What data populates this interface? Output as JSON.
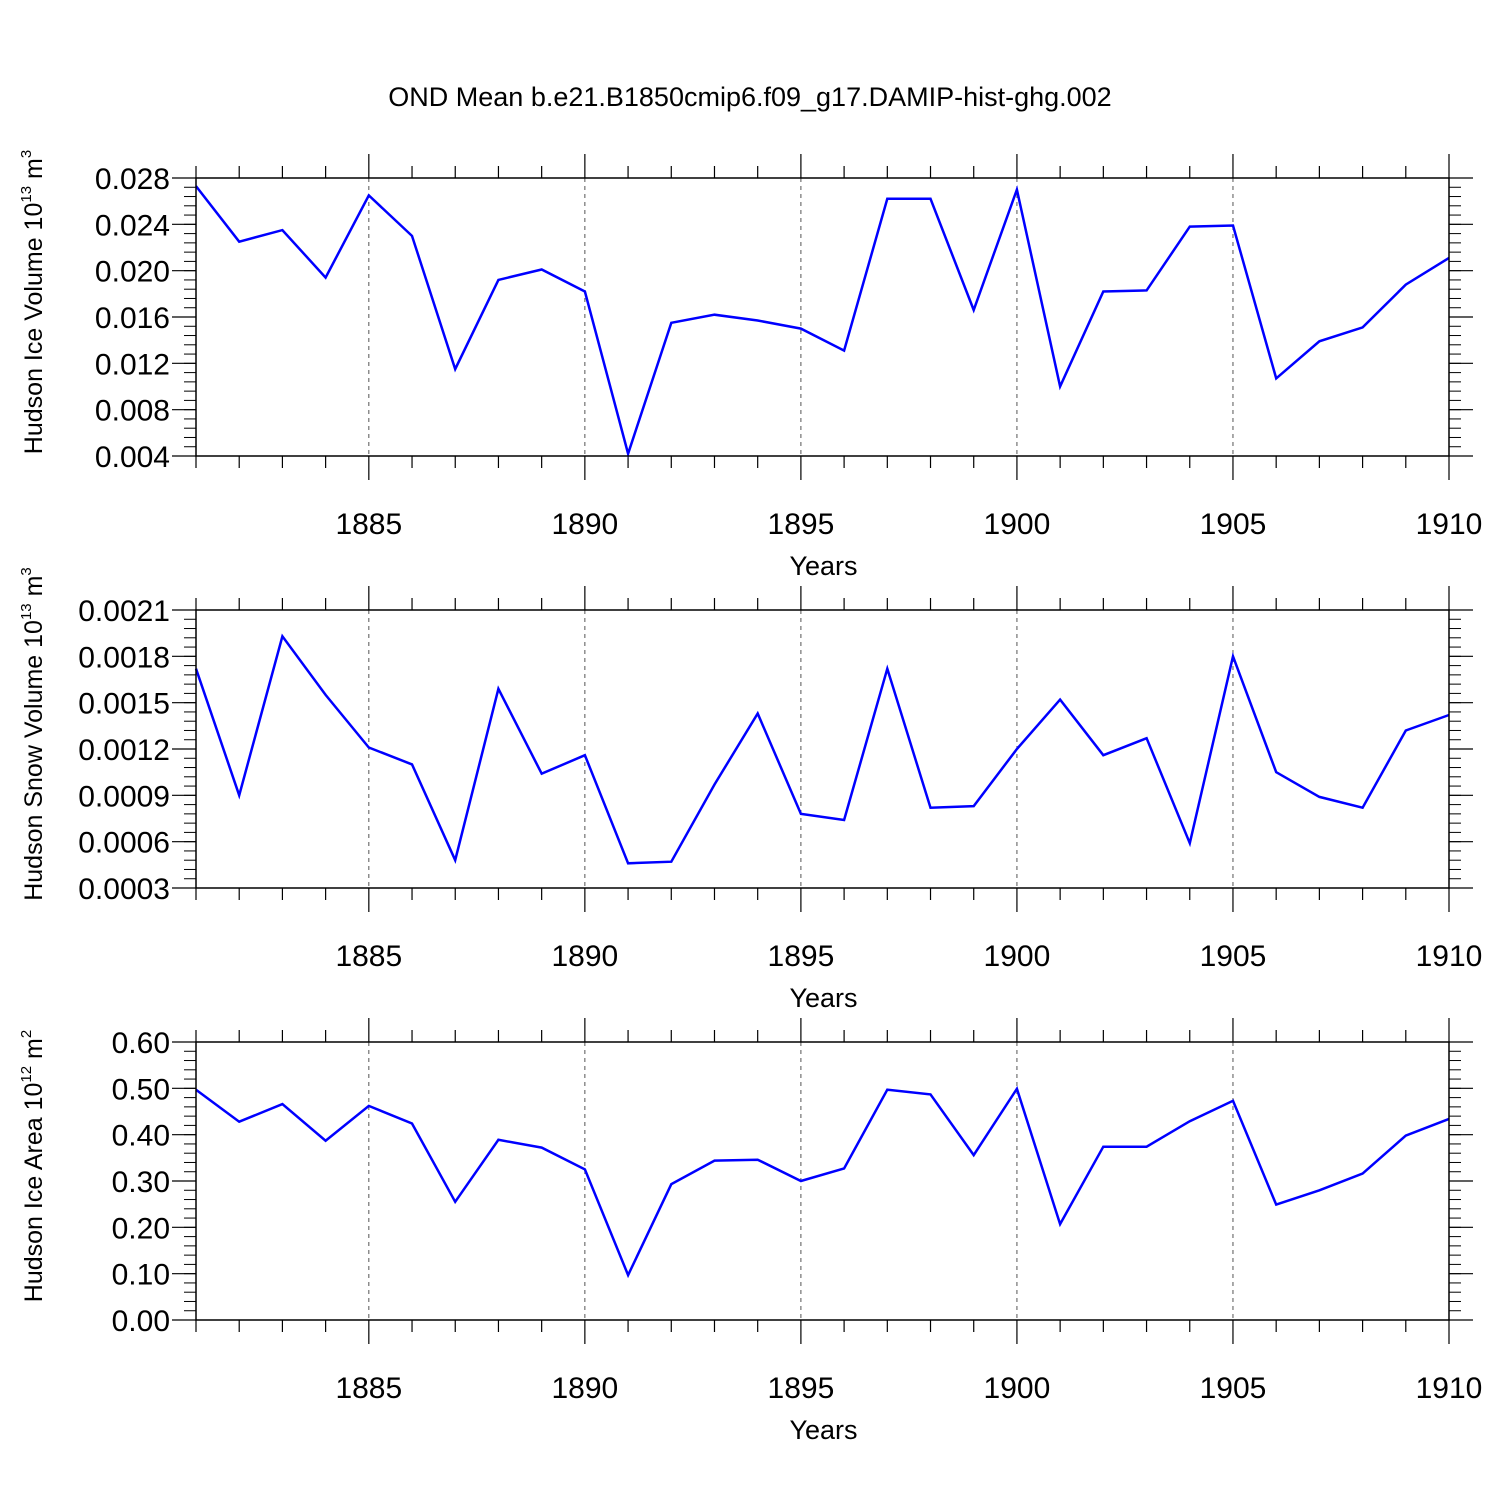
{
  "chart_data": [
    {
      "type": "line",
      "title": "OND Mean b.e21.B1850cmip6.f09_g17.DAMIP-hist-ghg.002",
      "ylabel": "Hudson Ice Volume",
      "ylabel_unit": "10",
      "ylabel_exp": "13",
      "ylabel_unit2": "m",
      "ylabel_exp2": "3",
      "xlabel": "Years",
      "xlim": [
        1881,
        1910
      ],
      "ylim": [
        0.004,
        0.028
      ],
      "x_ticks": [
        1885,
        1890,
        1895,
        1900,
        1905,
        1910
      ],
      "x_tick_labels": [
        "1885",
        "1890",
        "1895",
        "1900",
        "1905",
        "1910"
      ],
      "y_ticks": [
        0.004,
        0.008,
        0.012,
        0.016,
        0.02,
        0.024,
        0.028
      ],
      "y_tick_labels": [
        "0.004",
        "0.008",
        "0.012",
        "0.016",
        "0.020",
        "0.024",
        "0.028"
      ],
      "y_minor_step": 0.0008,
      "x": [
        1881,
        1882,
        1883,
        1884,
        1885,
        1886,
        1887,
        1888,
        1889,
        1890,
        1891,
        1892,
        1893,
        1894,
        1895,
        1896,
        1897,
        1898,
        1899,
        1900,
        1901,
        1902,
        1903,
        1904,
        1905,
        1906,
        1907,
        1908,
        1909,
        1910
      ],
      "series": [
        {
          "name": "Hudson Ice Volume",
          "color": "#0000ff",
          "values": [
            0.0273,
            0.0225,
            0.0235,
            0.0194,
            0.0265,
            0.023,
            0.0115,
            0.0192,
            0.0201,
            0.0182,
            0.0042,
            0.0155,
            0.0162,
            0.0157,
            0.015,
            0.0131,
            0.0262,
            0.0262,
            0.0166,
            0.027,
            0.01,
            0.0182,
            0.0183,
            0.0238,
            0.0239,
            0.0107,
            0.0139,
            0.0151,
            0.0188,
            0.0211
          ]
        }
      ]
    },
    {
      "type": "line",
      "title": "",
      "ylabel": "Hudson Snow Volume",
      "ylabel_unit": "10",
      "ylabel_exp": "13",
      "ylabel_unit2": "m",
      "ylabel_exp2": "3",
      "xlabel": "Years",
      "xlim": [
        1881,
        1910
      ],
      "ylim": [
        0.0003,
        0.0021
      ],
      "x_ticks": [
        1885,
        1890,
        1895,
        1900,
        1905,
        1910
      ],
      "x_tick_labels": [
        "1885",
        "1890",
        "1895",
        "1900",
        "1905",
        "1910"
      ],
      "y_ticks": [
        0.0003,
        0.0006,
        0.0009,
        0.0012,
        0.0015,
        0.0018,
        0.0021
      ],
      "y_tick_labels": [
        "0.0003",
        "0.0006",
        "0.0009",
        "0.0012",
        "0.0015",
        "0.0018",
        "0.0021"
      ],
      "y_minor_step": 6e-05,
      "x": [
        1881,
        1882,
        1883,
        1884,
        1885,
        1886,
        1887,
        1888,
        1889,
        1890,
        1891,
        1892,
        1893,
        1894,
        1895,
        1896,
        1897,
        1898,
        1899,
        1900,
        1901,
        1902,
        1903,
        1904,
        1905,
        1906,
        1907,
        1908,
        1909,
        1910
      ],
      "series": [
        {
          "name": "Hudson Snow Volume",
          "color": "#0000ff",
          "values": [
            0.00172,
            0.0009,
            0.00193,
            0.00155,
            0.00121,
            0.0011,
            0.00048,
            0.00159,
            0.00104,
            0.00116,
            0.00046,
            0.00047,
            0.00097,
            0.00143,
            0.00078,
            0.00074,
            0.00172,
            0.00082,
            0.00083,
            0.0012,
            0.00152,
            0.00116,
            0.00127,
            0.00059,
            0.0018,
            0.00105,
            0.00089,
            0.00082,
            0.00132,
            0.00142
          ]
        }
      ]
    },
    {
      "type": "line",
      "title": "",
      "ylabel": "Hudson Ice Area",
      "ylabel_unit": "10",
      "ylabel_exp": "12",
      "ylabel_unit2": "m",
      "ylabel_exp2": "2",
      "xlabel": "Years",
      "xlim": [
        1881,
        1910
      ],
      "ylim": [
        0.0,
        0.6
      ],
      "x_ticks": [
        1885,
        1890,
        1895,
        1900,
        1905,
        1910
      ],
      "x_tick_labels": [
        "1885",
        "1890",
        "1895",
        "1900",
        "1905",
        "1910"
      ],
      "y_ticks": [
        0.0,
        0.1,
        0.2,
        0.3,
        0.4,
        0.5,
        0.6
      ],
      "y_tick_labels": [
        "0.00",
        "0.10",
        "0.20",
        "0.30",
        "0.40",
        "0.50",
        "0.60"
      ],
      "y_minor_step": 0.02,
      "x": [
        1881,
        1882,
        1883,
        1884,
        1885,
        1886,
        1887,
        1888,
        1889,
        1890,
        1891,
        1892,
        1893,
        1894,
        1895,
        1896,
        1897,
        1898,
        1899,
        1900,
        1901,
        1902,
        1903,
        1904,
        1905,
        1906,
        1907,
        1908,
        1909,
        1910
      ],
      "series": [
        {
          "name": "Hudson Ice Area",
          "color": "#0000ff",
          "values": [
            0.497,
            0.428,
            0.466,
            0.387,
            0.462,
            0.424,
            0.255,
            0.389,
            0.372,
            0.325,
            0.097,
            0.293,
            0.344,
            0.346,
            0.3,
            0.327,
            0.497,
            0.487,
            0.356,
            0.499,
            0.207,
            0.374,
            0.374,
            0.429,
            0.473,
            0.249,
            0.28,
            0.316,
            0.398,
            0.434
          ]
        }
      ]
    }
  ]
}
